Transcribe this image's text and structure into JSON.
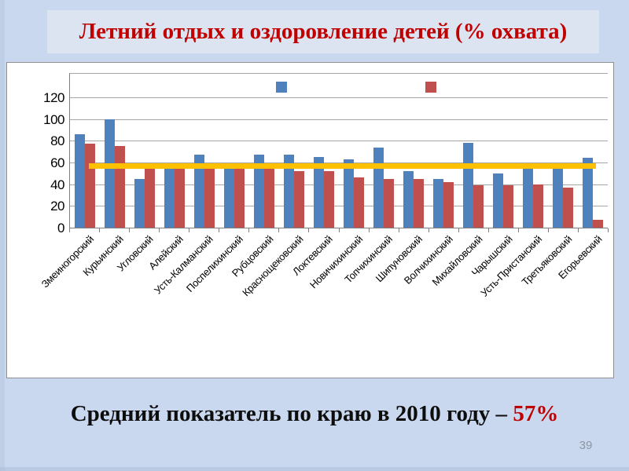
{
  "slide": {
    "title": "Летний отдых и оздоровление детей (% охвата)",
    "caption": {
      "prefix": "Средний показатель по краю в 2010 году –",
      "value": "57%"
    },
    "page_number": "39"
  },
  "colors": {
    "slide_bg": "#c9d8ee",
    "title_box_bg": "#dce4f1",
    "title_text": "#c00000",
    "caption_value": "#c00000",
    "panel_bg": "#ffffff",
    "bar_blue": "#4f81bd",
    "bar_red": "#c0504d",
    "reference_line": "#ffc000"
  },
  "chart_data": {
    "type": "bar",
    "title": "",
    "xlabel": "",
    "ylabel": "",
    "categories": [
      "Змеиногорский",
      "Курьинский",
      "Угловский",
      "Алейский",
      "Усть-Калманский",
      "Поспелихинский",
      "Рубцовский",
      "Краснощековский",
      "Локтевский",
      "Новичихинский",
      "Топчихинский",
      "Шипуновский",
      "Волчихинский",
      "Михайловский",
      "Чарышский",
      "Усть-Пристанский",
      "Третьяковский",
      "Егорьевский"
    ],
    "series": [
      {
        "name": "series-blue",
        "color": "#4f81bd",
        "values": [
          86,
          100,
          45,
          54,
          67,
          54,
          67,
          67,
          65,
          63,
          74,
          52,
          45,
          78,
          50,
          54,
          54,
          64
        ]
      },
      {
        "name": "series-red",
        "color": "#c0504d",
        "values": [
          77,
          75,
          59,
          54,
          54,
          54,
          54,
          52,
          52,
          46,
          45,
          45,
          42,
          39,
          39,
          40,
          37,
          7
        ]
      }
    ],
    "reference_line": {
      "value": 57,
      "color": "#ffc000",
      "label": ""
    },
    "ylim": [
      0,
      143
    ],
    "yticks": [
      0,
      20,
      40,
      60,
      80,
      100,
      120
    ],
    "grid": true,
    "legend": {
      "position": "top-inside",
      "entries": [
        {
          "color": "#4f81bd",
          "label": ""
        },
        {
          "color": "#c0504d",
          "label": ""
        }
      ]
    }
  }
}
